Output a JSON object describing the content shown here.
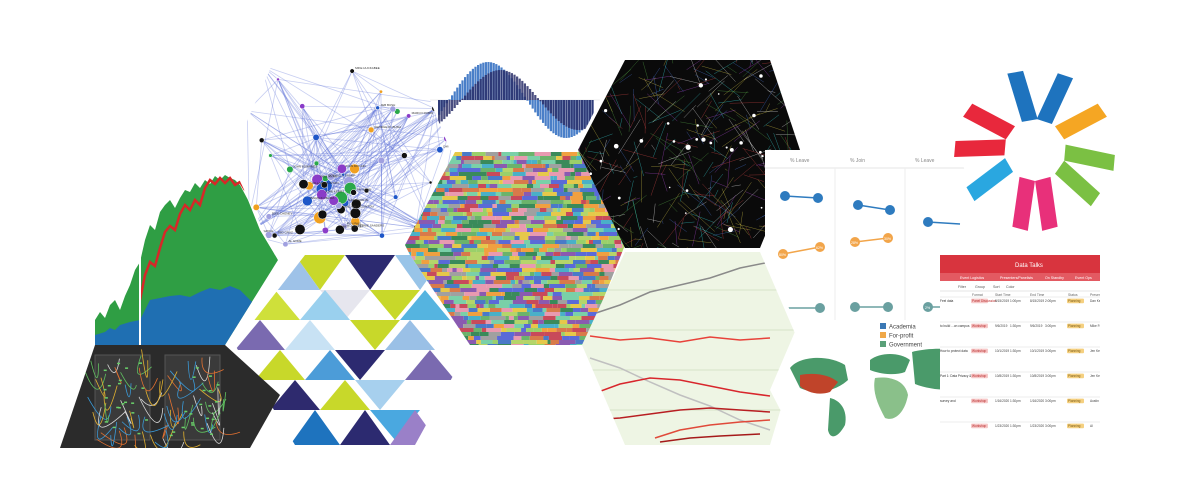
{
  "network_labels": [
    "WILLIAM J. CLINTON",
    "JOHN MCCAIN",
    "BARACK OBAMA",
    "BERNIE SANDERS",
    "HILLARY CLINTON",
    "RON PAUL",
    "DONALD J. TRUMP",
    "MITT ROMNEY",
    "JOHN KERRY",
    "CHRIS DODD",
    "JIM WEBB",
    "GEORGE W. BUSH",
    "DICK CHENEY",
    "JOE BIDEN",
    "TED CRUZ",
    "MARCO RUBIO",
    "JEB BUSH",
    "RICK PERRY",
    "NEWT GINGRICH",
    "AL GORE",
    "JOHN EDWARDS",
    "MIKE HUCKABEE",
    "PAUL RYAN",
    "SARAH PALIN"
  ],
  "dot_plot": {
    "headers": [
      "% Leave",
      "% Join",
      "% Leave"
    ],
    "row_labels": [
      "80%",
      "62%",
      "28%",
      "30%",
      "38%",
      "2%"
    ]
  },
  "map_legend": [
    {
      "label": "Academia",
      "color": "#3a78b5"
    },
    {
      "label": "For-profit",
      "color": "#f0a848"
    },
    {
      "label": "Government",
      "color": "#5aa078"
    }
  ],
  "table": {
    "title": "Data Talks",
    "toolbar": [
      "Filter",
      "Group",
      "Sort",
      "Color"
    ],
    "columns": [
      "Event Logistics",
      "Presenters/Panelists",
      "On Standby",
      "Event Ops"
    ],
    "subcolumns": [
      "Format",
      "Start Time",
      "End Time",
      "Status",
      "Presen"
    ],
    "rows": [
      {
        "topic": "Feel data",
        "format": "Panel Discussion",
        "date": "8/15/2019",
        "start": "1:00pm",
        "end_date": "8/15/2019",
        "end": "2:00pm",
        "status": "Planning",
        "people": "Dan Kennedy\nLuke Brand"
      },
      {
        "topic": "to build ...on campus",
        "format": "Workshop",
        "date": "9/6/2019",
        "start": "1:30pm",
        "end_date": "9/6/2019",
        "end": "3:00pm",
        "status": "Planning",
        "people": "Mike Ferguson"
      },
      {
        "topic": "How to protect data",
        "format": "Workshop",
        "date": "10/1/2019",
        "start": "1:30pm",
        "end_date": "10/1/2019",
        "end": "3:00pm",
        "status": "Planning",
        "people": "Jen Kennedy\nMeagan Cook"
      },
      {
        "topic": "Part 1: Data Privacy &",
        "format": "Workshop",
        "date": "10/8/2019",
        "start": "1:30pm",
        "end_date": "10/8/2019",
        "end": "3:00pm",
        "status": "Planning",
        "people": "Jen Kennedy"
      },
      {
        "topic": "survey and",
        "format": "Workshop",
        "date": "1/16/2020",
        "start": "1:30pm",
        "end_date": "1/16/2020",
        "end": "3:00pm",
        "status": "Planning",
        "people": "Austin Kelly"
      },
      {
        "topic": "",
        "format": "Workshop",
        "date": "1/23/2020",
        "start": "1:30pm",
        "end_date": "1/23/2020",
        "end": "3:00pm",
        "status": "Planning",
        "people": "Al"
      }
    ]
  },
  "colors": {
    "hex_blue": "#1e73be",
    "hex_orange": "#f5a623",
    "hex_green": "#7bc043",
    "hex_pink": "#e8307a",
    "hex_red": "#e8283c",
    "hex_cyan": "#2aa7e0",
    "table_red": "#d8343e"
  }
}
